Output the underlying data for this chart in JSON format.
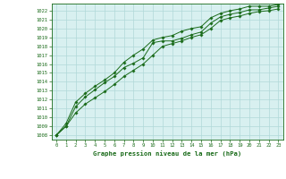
{
  "title": "Graphe pression niveau de la mer (hPa)",
  "fig_bg_color": "#ffffff",
  "plot_bg_color": "#d8f0f0",
  "grid_color": "#b0d8d8",
  "line_color": "#1a6b1a",
  "marker_color": "#1a6b1a",
  "xlim": [
    -0.5,
    23.5
  ],
  "ylim": [
    1007.5,
    1022.8
  ],
  "xticks": [
    0,
    1,
    2,
    3,
    4,
    5,
    6,
    7,
    8,
    9,
    10,
    11,
    12,
    13,
    14,
    15,
    16,
    17,
    18,
    19,
    20,
    21,
    22,
    23
  ],
  "yticks": [
    1008,
    1009,
    1010,
    1011,
    1012,
    1013,
    1014,
    1015,
    1016,
    1017,
    1018,
    1019,
    1020,
    1021,
    1022
  ],
  "series1": [
    1008.0,
    1009.0,
    1010.5,
    1011.5,
    1012.2,
    1012.9,
    1013.7,
    1014.6,
    1015.3,
    1016.0,
    1017.0,
    1018.0,
    1018.3,
    1018.6,
    1019.0,
    1019.3,
    1020.0,
    1020.9,
    1021.2,
    1021.4,
    1021.7,
    1021.9,
    1022.0,
    1022.2
  ],
  "series2": [
    1008.0,
    1009.0,
    1011.2,
    1012.3,
    1013.1,
    1013.9,
    1014.6,
    1015.6,
    1016.1,
    1016.7,
    1018.4,
    1018.6,
    1018.6,
    1018.9,
    1019.3,
    1019.6,
    1020.6,
    1021.3,
    1021.6,
    1021.8,
    1022.1,
    1022.1,
    1022.3,
    1022.5
  ],
  "series3": [
    1008.0,
    1009.3,
    1011.7,
    1012.7,
    1013.5,
    1014.2,
    1015.0,
    1016.2,
    1017.0,
    1017.7,
    1018.7,
    1019.0,
    1019.2,
    1019.7,
    1020.0,
    1020.2,
    1021.2,
    1021.7,
    1022.0,
    1022.2,
    1022.5,
    1022.5,
    1022.5,
    1022.7
  ]
}
